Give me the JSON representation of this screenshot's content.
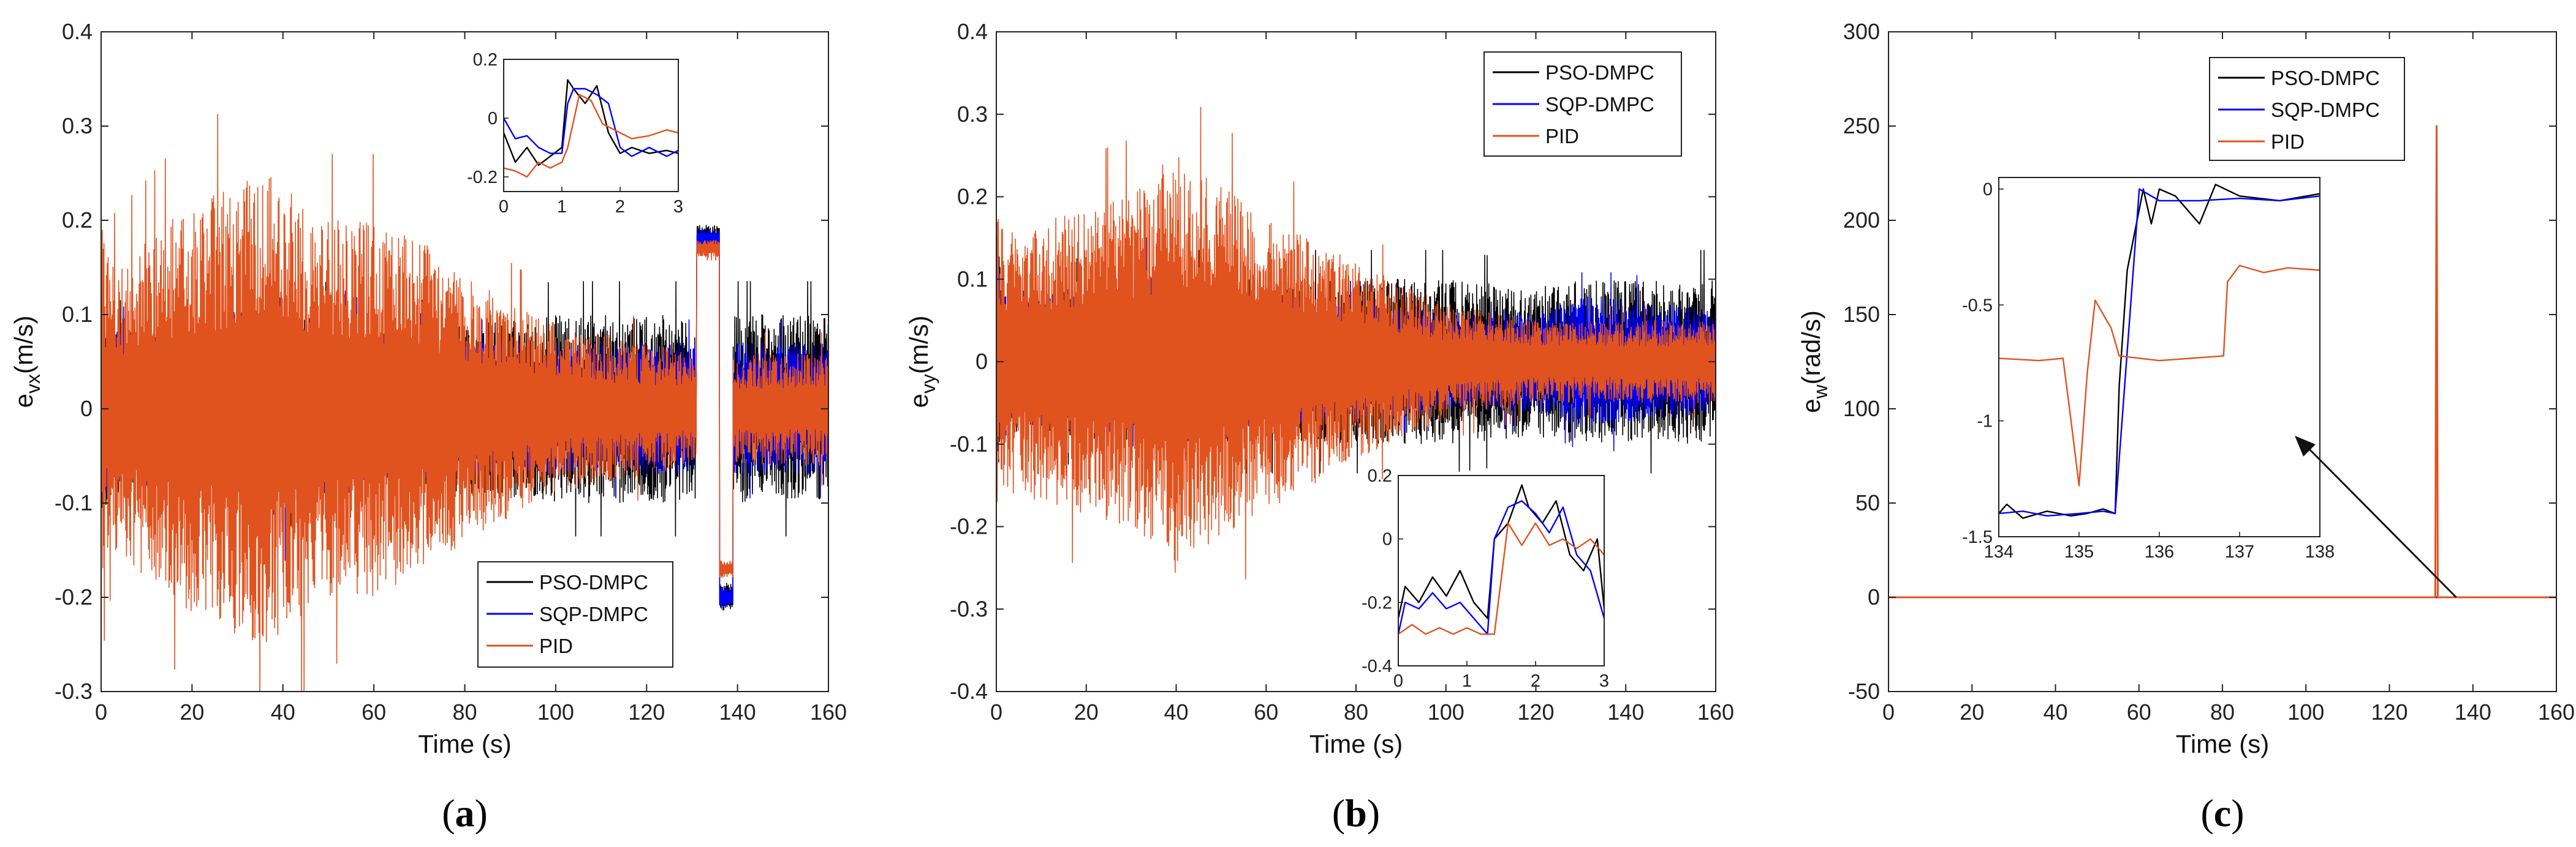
{
  "colors": {
    "pso": "#000000",
    "sqp": "#0000ff",
    "pid": "#e0531f",
    "axis": "#222222"
  },
  "chart_data": [
    {
      "id": "a",
      "type": "line",
      "caption": "a",
      "xlabel": "Time (s)",
      "ylabel": "e",
      "ylabel_sub": "vx",
      "ylabel_unit": "(m/s)",
      "xlim": [
        0,
        160
      ],
      "ylim": [
        -0.3,
        0.4
      ],
      "xticks": [
        0,
        20,
        40,
        60,
        80,
        100,
        120,
        140,
        160
      ],
      "yticks": [
        -0.3,
        -0.2,
        -0.1,
        0,
        0.1,
        0.2,
        0.3,
        0.4
      ],
      "ytick_labels": [
        "-0.3",
        "-0.2",
        "-0.1",
        "0",
        "0.1",
        "0.2",
        "0.3",
        "0.4"
      ],
      "legend": [
        "PSO-DMPC",
        "SQP-DMPC",
        "PID"
      ],
      "legend_position": "bottom-right",
      "series": [
        {
          "name": "PSO-DMPC",
          "envelope_t": [
            0,
            2,
            5,
            20,
            40,
            50,
            60,
            80,
            100,
            120,
            130,
            160
          ],
          "envelope_amp": [
            0.12,
            0.1,
            0.08,
            0.08,
            0.09,
            0.1,
            0.08,
            0.09,
            0.1,
            0.1,
            0.1,
            0.1
          ],
          "step": {
            "t0": 131,
            "t1": 136,
            "level": 0.18,
            "t2": 136,
            "t3": 139,
            "level2": -0.2
          }
        },
        {
          "name": "SQP-DMPC",
          "envelope_t": [
            0,
            2,
            5,
            20,
            40,
            50,
            60,
            80,
            100,
            120,
            130,
            160
          ],
          "envelope_amp": [
            0.1,
            0.09,
            0.08,
            0.09,
            0.12,
            0.1,
            0.08,
            0.07,
            0.07,
            0.07,
            0.07,
            0.07
          ],
          "step": {
            "t0": 131,
            "t1": 136,
            "level": 0.18,
            "t2": 136,
            "t3": 139,
            "level2": -0.2
          }
        },
        {
          "name": "PID",
          "envelope_t": [
            0,
            2,
            10,
            20,
            35,
            40,
            50,
            60,
            70,
            80,
            100,
            120,
            130,
            160
          ],
          "envelope_amp": [
            0.2,
            0.15,
            0.18,
            0.22,
            0.25,
            0.24,
            0.2,
            0.2,
            0.18,
            0.14,
            0.09,
            0.07,
            0.06,
            0.06
          ],
          "step": {
            "t0": 131,
            "t1": 136,
            "level": 0.17,
            "t2": 136,
            "t3": 139,
            "level2": -0.17
          }
        }
      ],
      "inset": {
        "position": "top-right",
        "xlim": [
          0,
          3
        ],
        "ylim": [
          -0.25,
          0.2
        ],
        "xticks": [
          0,
          1,
          2,
          3
        ],
        "yticks": [
          -0.2,
          0,
          0.2
        ],
        "ytick_labels": [
          "-0.2",
          "0",
          "0.2"
        ],
        "series": [
          {
            "name": "PSO-DMPC",
            "t": [
              0,
              0.2,
              0.4,
              0.6,
              0.8,
              1.0,
              1.1,
              1.2,
              1.4,
              1.6,
              1.8,
              2.0,
              2.2,
              2.5,
              2.8,
              3.0
            ],
            "v": [
              -0.05,
              -0.15,
              -0.1,
              -0.16,
              -0.13,
              -0.1,
              0.13,
              0.1,
              0.05,
              0.11,
              -0.05,
              -0.12,
              -0.1,
              -0.12,
              -0.11,
              -0.12
            ]
          },
          {
            "name": "SQP-DMPC",
            "t": [
              0,
              0.2,
              0.4,
              0.6,
              0.8,
              1.0,
              1.1,
              1.2,
              1.4,
              1.6,
              1.8,
              2.0,
              2.2,
              2.5,
              2.8,
              3.0
            ],
            "v": [
              0.0,
              -0.07,
              -0.06,
              -0.1,
              -0.12,
              -0.12,
              0.05,
              0.1,
              0.1,
              0.08,
              0.05,
              -0.1,
              -0.13,
              -0.1,
              -0.13,
              -0.11
            ]
          },
          {
            "name": "PID",
            "t": [
              0,
              0.2,
              0.4,
              0.6,
              0.8,
              1.0,
              1.1,
              1.3,
              1.5,
              1.7,
              2.0,
              2.2,
              2.5,
              2.8,
              3.0
            ],
            "v": [
              -0.17,
              -0.18,
              -0.2,
              -0.15,
              -0.17,
              -0.15,
              -0.1,
              0.08,
              0.06,
              -0.02,
              -0.05,
              -0.07,
              -0.06,
              -0.04,
              -0.05
            ]
          }
        ]
      }
    },
    {
      "id": "b",
      "type": "line",
      "caption": "b",
      "xlabel": "Time (s)",
      "ylabel": "e",
      "ylabel_sub": "vy",
      "ylabel_unit": "(m/s)",
      "xlim": [
        0,
        160
      ],
      "ylim": [
        -0.4,
        0.4
      ],
      "xticks": [
        0,
        20,
        40,
        60,
        80,
        100,
        120,
        140,
        160
      ],
      "yticks": [
        -0.4,
        -0.3,
        -0.2,
        -0.1,
        0,
        0.1,
        0.2,
        0.3,
        0.4
      ],
      "ytick_labels": [
        "-0.4",
        "-0.3",
        "-0.2",
        "-0.1",
        "0",
        "0.1",
        "0.2",
        "0.3",
        "0.4"
      ],
      "legend": [
        "PSO-DMPC",
        "SQP-DMPC",
        "PID"
      ],
      "legend_position": "top-right",
      "series": [
        {
          "name": "PSO-DMPC",
          "envelope_t": [
            0,
            2,
            10,
            40,
            60,
            80,
            100,
            120,
            130,
            140,
            160
          ],
          "envelope_amp": [
            0.15,
            0.1,
            0.09,
            0.1,
            0.1,
            0.1,
            0.1,
            0.09,
            0.1,
            0.1,
            0.1
          ]
        },
        {
          "name": "SQP-DMPC",
          "envelope_t": [
            0,
            2,
            10,
            40,
            60,
            80,
            100,
            120,
            130,
            140,
            160
          ],
          "envelope_amp": [
            0.12,
            0.09,
            0.08,
            0.12,
            0.08,
            0.07,
            0.06,
            0.06,
            0.08,
            0.08,
            0.06
          ]
        },
        {
          "name": "PID",
          "envelope_t": [
            0,
            2,
            10,
            30,
            40,
            45,
            60,
            80,
            100,
            120,
            130,
            140,
            160
          ],
          "envelope_amp": [
            0.2,
            0.16,
            0.17,
            0.2,
            0.26,
            0.23,
            0.18,
            0.12,
            0.07,
            0.05,
            0.05,
            0.05,
            0.05
          ]
        }
      ],
      "inset": {
        "position": "bottom-right",
        "xlim": [
          0,
          3
        ],
        "ylim": [
          -0.4,
          0.2
        ],
        "xticks": [
          0,
          1,
          2,
          3
        ],
        "yticks": [
          -0.4,
          -0.2,
          0,
          0.2
        ],
        "ytick_labels": [
          "-0.4",
          "-0.2",
          "0",
          "0.2"
        ],
        "series": [
          {
            "name": "PSO-DMPC",
            "t": [
              0,
              0.1,
              0.3,
              0.5,
              0.7,
              0.9,
              1.1,
              1.3,
              1.4,
              1.6,
              1.8,
              1.9,
              2.1,
              2.3,
              2.5,
              2.7,
              2.9,
              3.0
            ],
            "v": [
              -0.25,
              -0.15,
              -0.2,
              -0.12,
              -0.18,
              -0.1,
              -0.2,
              -0.25,
              0.0,
              0.05,
              0.17,
              0.1,
              0.05,
              0.12,
              -0.05,
              -0.1,
              0.0,
              -0.22
            ]
          },
          {
            "name": "SQP-DMPC",
            "t": [
              0,
              0.1,
              0.3,
              0.5,
              0.7,
              0.9,
              1.1,
              1.3,
              1.4,
              1.6,
              1.8,
              2.0,
              2.2,
              2.4,
              2.6,
              2.8,
              3.0
            ],
            "v": [
              -0.3,
              -0.2,
              -0.22,
              -0.17,
              -0.22,
              -0.2,
              -0.25,
              -0.3,
              0.0,
              0.1,
              0.12,
              0.08,
              0.02,
              0.1,
              -0.05,
              -0.1,
              -0.25
            ]
          },
          {
            "name": "PID",
            "t": [
              0,
              0.2,
              0.4,
              0.6,
              0.8,
              1.0,
              1.2,
              1.4,
              1.6,
              1.8,
              2.0,
              2.2,
              2.4,
              2.6,
              2.8,
              3.0
            ],
            "v": [
              -0.3,
              -0.27,
              -0.3,
              -0.28,
              -0.3,
              -0.28,
              -0.3,
              -0.3,
              0.05,
              -0.02,
              0.05,
              -0.02,
              0.0,
              -0.03,
              0.0,
              -0.05
            ]
          }
        ]
      }
    },
    {
      "id": "c",
      "type": "line",
      "caption": "c",
      "xlabel": "Time (s)",
      "ylabel": "e",
      "ylabel_sub": "w",
      "ylabel_unit": "(rad/s)",
      "xlim": [
        0,
        160
      ],
      "ylim": [
        -50,
        300
      ],
      "xticks": [
        0,
        20,
        40,
        60,
        80,
        100,
        120,
        140,
        160
      ],
      "yticks": [
        -50,
        0,
        50,
        100,
        150,
        200,
        250,
        300
      ],
      "ytick_labels": [
        "-50",
        "0",
        "50",
        "100",
        "150",
        "200",
        "250",
        "300"
      ],
      "legend": [
        "PSO-DMPC",
        "SQP-DMPC",
        "PID"
      ],
      "legend_position": "top-right",
      "series": [
        {
          "name": "PSO-DMPC",
          "t": [
            0,
            160
          ],
          "v": [
            0,
            0
          ]
        },
        {
          "name": "SQP-DMPC",
          "t": [
            0,
            160
          ],
          "v": [
            0,
            0
          ]
        },
        {
          "name": "PID",
          "t": [
            0,
            131,
            131.3,
            131.6,
            160
          ],
          "v": [
            0,
            0,
            250,
            0,
            0
          ]
        }
      ],
      "inset": {
        "position": "center-left",
        "xlim": [
          134,
          138
        ],
        "ylim": [
          -1.5,
          0.05
        ],
        "xticks": [
          134,
          135,
          136,
          137,
          138
        ],
        "yticks": [
          -1.5,
          -1,
          -0.5,
          0
        ],
        "ytick_labels": [
          "-1.5",
          "-1",
          "-0.5",
          "0"
        ],
        "arrow": true,
        "series": [
          {
            "name": "PSO-DMPC",
            "t": [
              134,
              134.1,
              134.3,
              134.6,
              134.9,
              135.1,
              135.3,
              135.45,
              135.5,
              135.6,
              135.8,
              135.9,
              136.0,
              136.2,
              136.5,
              136.7,
              137.0,
              137.5,
              138.0
            ],
            "v": [
              -1.4,
              -1.36,
              -1.42,
              -1.39,
              -1.41,
              -1.4,
              -1.38,
              -1.4,
              -0.85,
              -0.35,
              0.0,
              -0.15,
              0.0,
              -0.03,
              -0.15,
              0.02,
              -0.03,
              -0.05,
              -0.02
            ]
          },
          {
            "name": "SQP-DMPC",
            "t": [
              134,
              134.3,
              134.6,
              135.0,
              135.3,
              135.45,
              135.6,
              135.75,
              136.0,
              136.5,
              137.0,
              137.5,
              138.0
            ],
            "v": [
              -1.4,
              -1.39,
              -1.41,
              -1.4,
              -1.39,
              -1.4,
              -0.7,
              0.0,
              -0.05,
              -0.05,
              -0.04,
              -0.05,
              -0.03
            ]
          },
          {
            "name": "PID",
            "t": [
              134,
              134.5,
              134.8,
              134.9,
              135.0,
              135.1,
              135.2,
              135.4,
              135.5,
              136.0,
              136.8,
              136.85,
              137.0,
              137.3,
              137.6,
              138.0
            ],
            "v": [
              -0.73,
              -0.74,
              -0.73,
              -1.0,
              -1.28,
              -0.8,
              -0.48,
              -0.6,
              -0.72,
              -0.74,
              -0.72,
              -0.4,
              -0.33,
              -0.36,
              -0.34,
              -0.35
            ]
          }
        ]
      }
    }
  ]
}
